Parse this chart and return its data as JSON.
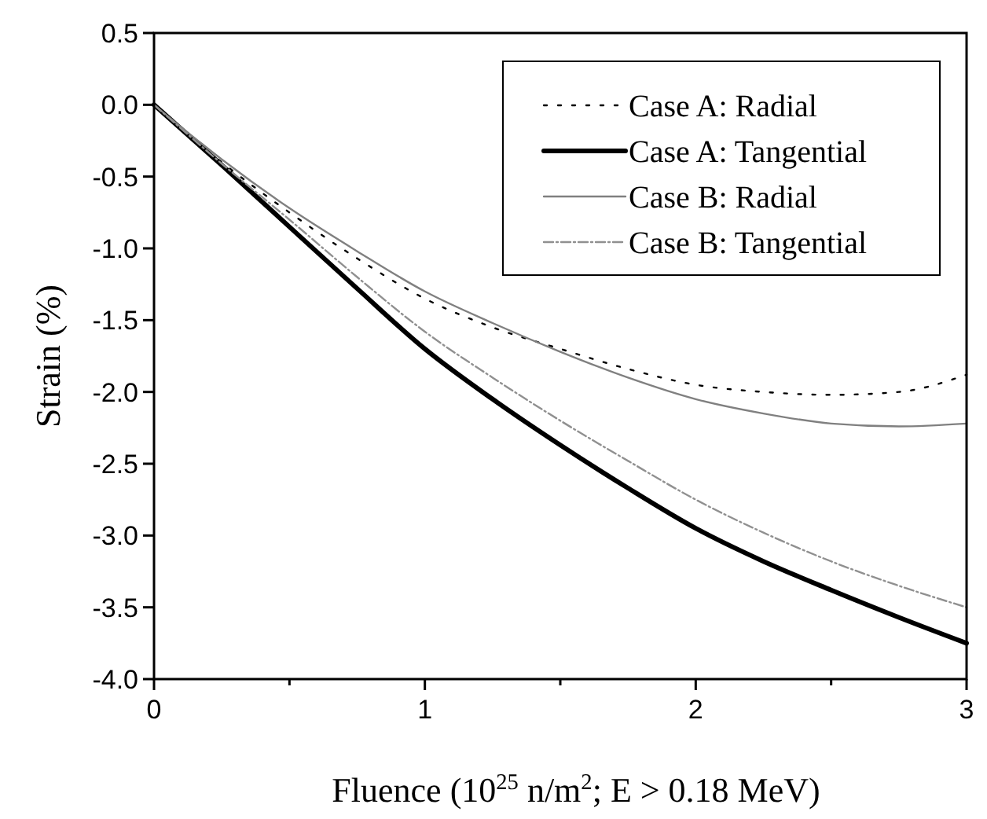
{
  "chart_data": {
    "type": "line",
    "xlabel": "Fluence (10$^{25}$ n/m$^{2}$; E > 0.18 MeV)",
    "ylabel": "Strain (%)",
    "x": [
      0,
      0.25,
      0.5,
      0.75,
      1,
      1.25,
      1.5,
      1.75,
      2,
      2.25,
      2.5,
      2.75,
      3
    ],
    "series": [
      {
        "name": "Case A: Radial",
        "color": "#000000",
        "line_style": "dotted",
        "values": [
          0,
          -0.4,
          -0.75,
          -1.07,
          -1.35,
          -1.55,
          -1.7,
          -1.84,
          -1.95,
          -2.0,
          -2.02,
          -2.0,
          -1.88
        ]
      },
      {
        "name": "Case A: Tangential",
        "color": "#000000",
        "line_style": "solid",
        "values": [
          0,
          -0.42,
          -0.85,
          -1.28,
          -1.7,
          -2.05,
          -2.37,
          -2.67,
          -2.95,
          -3.18,
          -3.38,
          -3.57,
          -3.75
        ]
      },
      {
        "name": "Case B: Radial",
        "color": "#808080",
        "line_style": "solid",
        "values": [
          0,
          -0.38,
          -0.72,
          -1.02,
          -1.3,
          -1.52,
          -1.72,
          -1.9,
          -2.05,
          -2.15,
          -2.22,
          -2.24,
          -2.22
        ]
      },
      {
        "name": "Case B: Tangential",
        "color": "#909090",
        "line_style": "dashdot",
        "values": [
          0,
          -0.41,
          -0.8,
          -1.2,
          -1.58,
          -1.9,
          -2.2,
          -2.48,
          -2.75,
          -2.98,
          -3.18,
          -3.35,
          -3.5
        ]
      }
    ],
    "xlim": [
      0,
      3
    ],
    "xticks": [
      0,
      {
        "value": 0.5,
        "label": null
      },
      1,
      {
        "value": 1.5,
        "label": null
      },
      2,
      {
        "value": 2.5,
        "label": null
      },
      3
    ],
    "ylim": [
      -4,
      0.5
    ],
    "yticks": [
      {
        "value": 0.5,
        "label": "0.5"
      },
      {
        "value": 0,
        "label": "0.0"
      },
      {
        "value": -0.5,
        "label": "-0.5"
      },
      {
        "value": -1,
        "label": "-1.0"
      },
      {
        "value": -1.5,
        "label": "-1.5"
      },
      {
        "value": -2,
        "label": "-2.0"
      },
      {
        "value": -2.5,
        "label": "-2.5"
      },
      {
        "value": -3,
        "label": "-3.0"
      },
      {
        "value": -3.5,
        "label": "-3.5"
      },
      {
        "value": -4,
        "label": "-4.0"
      }
    ],
    "grid": false,
    "legend": "top right"
  }
}
